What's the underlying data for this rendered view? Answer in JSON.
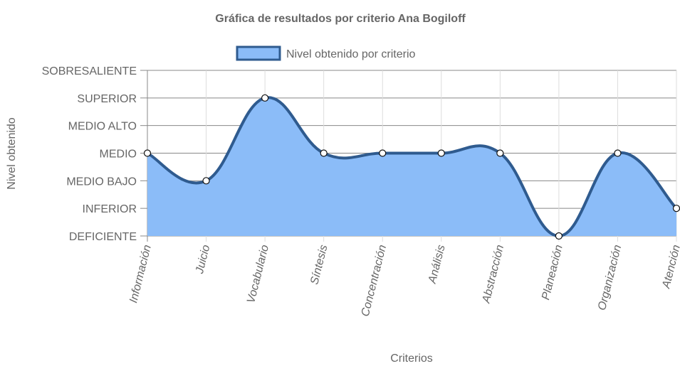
{
  "chart_data": {
    "type": "area",
    "title": "Gráfica de resultados por criterio Ana Bogiloff",
    "xlabel": "Criterios",
    "ylabel": "Nivel obtenido",
    "categories": [
      "Información",
      "Juicio",
      "Vocabulario",
      "Síntesis",
      "Concentración",
      "Análisis",
      "Abstracción",
      "Planeación",
      "Organización",
      "Atención"
    ],
    "y_levels": [
      "DEFICIENTE",
      "INFERIOR",
      "MEDIO BAJO",
      "MEDIO",
      "MEDIO ALTO",
      "SUPERIOR",
      "SOBRESALIENTE"
    ],
    "ylim": [
      0,
      6
    ],
    "grid": true,
    "legend_position": "top",
    "series": [
      {
        "name": "Nivel obtenido por criterio",
        "values": [
          3,
          2,
          5,
          3,
          3,
          3,
          3,
          0,
          3,
          1
        ],
        "fill_color": "#8bbcf8",
        "line_color": "#2f5b8f"
      }
    ]
  }
}
